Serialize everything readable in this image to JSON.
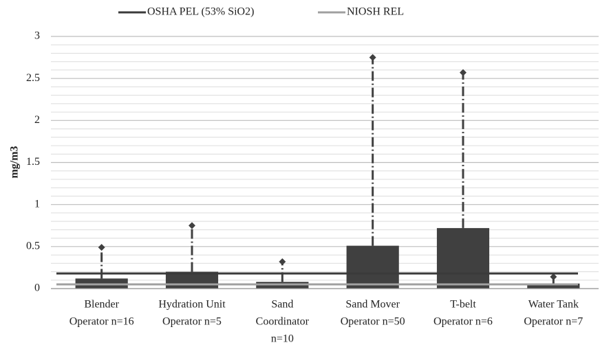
{
  "chart_data": {
    "type": "box",
    "ylabel": "mg/m3",
    "categories": [
      [
        "Blender",
        "Operator  n=16"
      ],
      [
        "Hydration Unit",
        "Operator n=5"
      ],
      [
        "Sand",
        "Coordinator",
        "n=10"
      ],
      [
        "Sand Mover",
        "Operator n=50"
      ],
      [
        "T-belt",
        "Operator n=6"
      ],
      [
        "Water Tank",
        "Operator n=7"
      ]
    ],
    "q3": [
      0.12,
      0.2,
      0.08,
      0.51,
      0.72,
      0.06
    ],
    "max": [
      0.49,
      0.75,
      0.32,
      2.75,
      2.57,
      0.14
    ],
    "color": "#404040",
    "reference_lines": [
      {
        "name": "OSHA PEL (53% SiO2)",
        "value": 0.18,
        "color": "#3a3a3a"
      },
      {
        "name": "NIOSH REL",
        "value": 0.05,
        "color": "#a0a0a0"
      }
    ],
    "ylim": [
      0,
      3
    ],
    "yticks": [
      0,
      0.5,
      1,
      1.5,
      2,
      2.5,
      3
    ],
    "minor_yticks": [
      0.1,
      0.2,
      0.3,
      0.4,
      0.6,
      0.7,
      0.8,
      0.9,
      1.1,
      1.2,
      1.3,
      1.4,
      1.6,
      1.7,
      1.8,
      1.9,
      2.1,
      2.2,
      2.3,
      2.4,
      2.6,
      2.7,
      2.8,
      2.9
    ],
    "grid": true
  }
}
